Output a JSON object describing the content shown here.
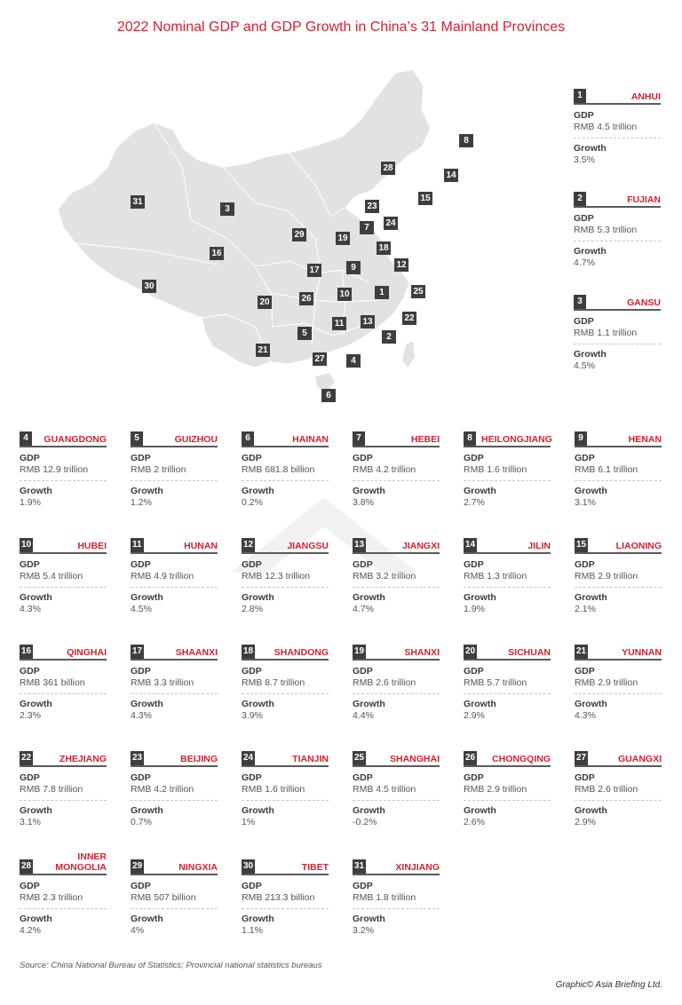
{
  "title": "2022 Nominal GDP and GDP Growth in China’s 31 Mainland Provinces",
  "labels": {
    "gdp": "GDP",
    "growth": "Growth"
  },
  "provinces": [
    {
      "num": "1",
      "name": "ANHUI",
      "gdp": "RMB 4.5 trillion",
      "growth": "3.5%"
    },
    {
      "num": "2",
      "name": "FUJIAN",
      "gdp": "RMB 5.3 trillion",
      "growth": "4.7%"
    },
    {
      "num": "3",
      "name": "GANSU",
      "gdp": "RMB 1.1 trillion",
      "growth": "4.5%"
    },
    {
      "num": "4",
      "name": "GUANGDONG",
      "gdp": "RMB 12.9 trillion",
      "growth": "1.9%"
    },
    {
      "num": "5",
      "name": "GUIZHOU",
      "gdp": "RMB 2 trillion",
      "growth": "1.2%"
    },
    {
      "num": "6",
      "name": "HAINAN",
      "gdp": "RMB 681.8 billion",
      "growth": "0.2%"
    },
    {
      "num": "7",
      "name": "HEBEI",
      "gdp": "RMB 4.2 trillion",
      "growth": "3.8%"
    },
    {
      "num": "8",
      "name": "HEILONGJIANG",
      "gdp": "RMB 1.6 trillion",
      "growth": "2.7%"
    },
    {
      "num": "9",
      "name": "HENAN",
      "gdp": "RMB 6.1 trillion",
      "growth": "3.1%"
    },
    {
      "num": "10",
      "name": "HUBEI",
      "gdp": "RMB 5.4 trillion",
      "growth": "4.3%"
    },
    {
      "num": "11",
      "name": "HUNAN",
      "gdp": "RMB 4.9 trillion",
      "growth": "4.5%"
    },
    {
      "num": "12",
      "name": "JIANGSU",
      "gdp": "RMB 12.3 trillion",
      "growth": "2.8%"
    },
    {
      "num": "13",
      "name": "JIANGXI",
      "gdp": "RMB 3.2 trillion",
      "growth": "4.7%"
    },
    {
      "num": "14",
      "name": "JILIN",
      "gdp": "RMB 1.3 trillion",
      "growth": "1.9%"
    },
    {
      "num": "15",
      "name": "LIAONING",
      "gdp": "RMB 2.9 trillion",
      "growth": "2.1%"
    },
    {
      "num": "16",
      "name": "QINGHAI",
      "gdp": "RMB 361 billion",
      "growth": "2.3%"
    },
    {
      "num": "17",
      "name": "SHAANXI",
      "gdp": "RMB 3.3 trillion",
      "growth": "4.3%"
    },
    {
      "num": "18",
      "name": "SHANDONG",
      "gdp": "RMB 8.7 trillion",
      "growth": "3.9%"
    },
    {
      "num": "19",
      "name": "SHANXI",
      "gdp": "RMB 2.6 trillion",
      "growth": "4.4%"
    },
    {
      "num": "20",
      "name": "SICHUAN",
      "gdp": "RMB 5.7 trillion",
      "growth": "2.9%"
    },
    {
      "num": "21",
      "name": "YUNNAN",
      "gdp": "RMB 2.9 trillion",
      "growth": "4.3%"
    },
    {
      "num": "22",
      "name": "ZHEJIANG",
      "gdp": "RMB 7.8 trillion",
      "growth": "3.1%"
    },
    {
      "num": "23",
      "name": "BEIJING",
      "gdp": "RMB 4.2 trillion",
      "growth": "0.7%"
    },
    {
      "num": "24",
      "name": "TIANJIN",
      "gdp": "RMB 1.6 trillion",
      "growth": "1%"
    },
    {
      "num": "25",
      "name": "SHANGHAI",
      "gdp": "RMB 4.5 trillion",
      "growth": "-0.2%"
    },
    {
      "num": "26",
      "name": "CHONGQING",
      "gdp": "RMB 2.9 trillion",
      "growth": "2.6%"
    },
    {
      "num": "27",
      "name": "GUANGXI",
      "gdp": "RMB 2.6 trillion",
      "growth": "2.9%"
    },
    {
      "num": "28",
      "name": "INNER MONGOLIA",
      "gdp": "RMB 2.3 trillion",
      "growth": "4.2%"
    },
    {
      "num": "29",
      "name": "NINGXIA",
      "gdp": "RMB 507 billion",
      "growth": "4%"
    },
    {
      "num": "30",
      "name": "TIBET",
      "gdp": "RMB 213.3 billion",
      "growth": "1.1%"
    },
    {
      "num": "31",
      "name": "XINJIANG",
      "gdp": "RMB 1.8 trillion",
      "growth": "3.2%"
    }
  ],
  "source": "Source: China National Bureau of Statistics; Provincial national statistics bureaus",
  "credit": "Graphic© Asia Briefing Ltd.",
  "colors": {
    "accent": "#d6202f",
    "dark": "#3e3e3e",
    "map": "#e2e2e2"
  }
}
